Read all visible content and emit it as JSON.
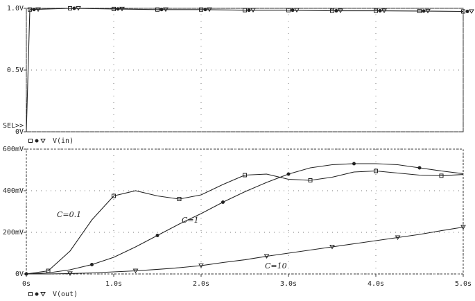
{
  "chart_data": [
    {
      "type": "line",
      "annotation": "SEL>>",
      "legend_label": "V(in)",
      "x": [
        0,
        0.02,
        0.04,
        0.5,
        1,
        1.5,
        2,
        2.5,
        3,
        3.5,
        4,
        4.5,
        5
      ],
      "series": [
        {
          "color": "#222222",
          "values": [
            0,
            0.5,
            0.99,
            1.0,
            0.995,
            0.99,
            0.99,
            0.985,
            0.985,
            0.98,
            0.98,
            0.978,
            0.975
          ]
        }
      ],
      "xlim": [
        0,
        5
      ],
      "ylim": [
        0,
        1
      ],
      "yticks": [
        {
          "value": 1,
          "label": "1.0V"
        },
        {
          "value": 0.5,
          "label": "0.5V"
        },
        {
          "value": 0,
          "label": "0V"
        }
      ],
      "grid": true
    },
    {
      "type": "line",
      "legend_label": "V(out)",
      "x": [
        0,
        0.25,
        0.5,
        0.75,
        1,
        1.25,
        1.5,
        1.75,
        2,
        2.25,
        2.5,
        2.75,
        3,
        3.25,
        3.5,
        3.75,
        4,
        4.25,
        4.5,
        4.75,
        5
      ],
      "series": [
        {
          "name": "C=0.1",
          "marker": "square",
          "color": "#222222",
          "values": [
            0,
            15,
            110,
            260,
            375,
            400,
            375,
            360,
            380,
            430,
            475,
            480,
            455,
            450,
            465,
            490,
            495,
            485,
            475,
            472,
            478
          ]
        },
        {
          "name": "C=1",
          "marker": "circle",
          "color": "#222222",
          "values": [
            0,
            5,
            20,
            45,
            80,
            130,
            185,
            240,
            290,
            345,
            395,
            440,
            480,
            510,
            525,
            530,
            530,
            525,
            510,
            495,
            482
          ]
        },
        {
          "name": "C=10",
          "marker": "triangle",
          "color": "#222222",
          "values": [
            0,
            0,
            2,
            5,
            10,
            15,
            22,
            30,
            40,
            55,
            68,
            85,
            100,
            115,
            130,
            145,
            160,
            175,
            190,
            208,
            225
          ]
        }
      ],
      "xlim": [
        0,
        5
      ],
      "ylim": [
        0,
        600
      ],
      "xticks": [
        {
          "value": 0,
          "label": "0s"
        },
        {
          "value": 1,
          "label": "1.0s"
        },
        {
          "value": 2,
          "label": "2.0s"
        },
        {
          "value": 3,
          "label": "3.0s"
        },
        {
          "value": 4,
          "label": "4.0s"
        },
        {
          "value": 5,
          "label": "5.0s"
        }
      ],
      "yticks": [
        {
          "value": 600,
          "label": "600mV"
        },
        {
          "value": 400,
          "label": "400mV"
        },
        {
          "value": 200,
          "label": "200mV"
        },
        {
          "value": 0,
          "label": "0V"
        }
      ],
      "grid": true
    }
  ]
}
